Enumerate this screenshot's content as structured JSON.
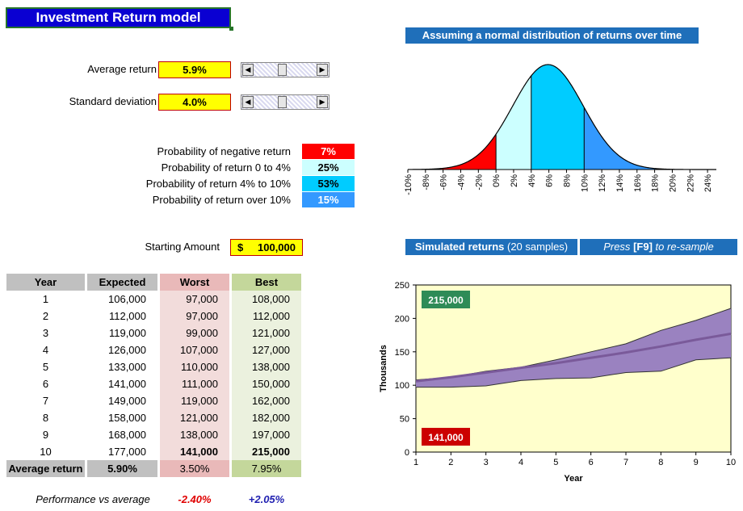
{
  "title": "Investment Return model",
  "inputs": {
    "avg_return_label": "Average return",
    "avg_return_value": "5.9%",
    "avg_return_slider": 0.45,
    "std_dev_label": "Standard deviation",
    "std_dev_value": "4.0%",
    "std_dev_slider": 0.45
  },
  "probabilities": [
    {
      "label": "Probability of negative return",
      "value": "7%",
      "color": "#ff0000",
      "text_color": "#ffffff"
    },
    {
      "label": "Probability of return 0 to 4%",
      "value": "25%",
      "color": "#ccffff",
      "text_color": "#000000"
    },
    {
      "label": "Probability of return 4% to 10%",
      "value": "53%",
      "color": "#00ccff",
      "text_color": "#000000"
    },
    {
      "label": "Probability of return over 10%",
      "value": "15%",
      "color": "#3399ff",
      "text_color": "#ffffff"
    }
  ],
  "starting_amount": {
    "label": "Starting Amount",
    "currency": "$",
    "value": "100,000"
  },
  "table": {
    "headers": [
      "Year",
      "Expected",
      "Worst",
      "Best"
    ],
    "rows": [
      [
        "1",
        "106,000",
        "97,000",
        "108,000"
      ],
      [
        "2",
        "112,000",
        "97,000",
        "112,000"
      ],
      [
        "3",
        "119,000",
        "99,000",
        "121,000"
      ],
      [
        "4",
        "126,000",
        "107,000",
        "127,000"
      ],
      [
        "5",
        "133,000",
        "110,000",
        "138,000"
      ],
      [
        "6",
        "141,000",
        "111,000",
        "150,000"
      ],
      [
        "7",
        "149,000",
        "119,000",
        "162,000"
      ],
      [
        "8",
        "158,000",
        "121,000",
        "182,000"
      ],
      [
        "9",
        "168,000",
        "138,000",
        "197,000"
      ],
      [
        "10",
        "177,000",
        "141,000",
        "215,000"
      ]
    ],
    "avg_label": "Average return",
    "avg_values": [
      "5.90%",
      "3.50%",
      "7.95%"
    ],
    "perf_label": "Performance vs average",
    "perf_worst": "-2.40%",
    "perf_best": "+2.05%"
  },
  "dist_banner": "Assuming a normal distribution of returns over time",
  "sim_banner_bold": "Simulated returns",
  "sim_banner_rest": "(20 samples)",
  "resample_pre": "Press",
  "resample_key": "[F9]",
  "resample_post": "to re-sample",
  "chart_data": [
    {
      "type": "area",
      "title": "Assuming a normal distribution of returns over time",
      "distribution": "normal",
      "mean": 5.9,
      "std_dev": 4.0,
      "x_ticks": [
        "-10%",
        "-8%",
        "-6%",
        "-4%",
        "-2%",
        "0%",
        "2%",
        "4%",
        "6%",
        "8%",
        "10%",
        "12%",
        "14%",
        "16%",
        "18%",
        "20%",
        "22%",
        "24%"
      ],
      "xlim": [
        -10,
        25
      ],
      "bands": [
        {
          "from": -10,
          "to": 0,
          "color": "#ff0000"
        },
        {
          "from": 0,
          "to": 4,
          "color": "#ccffff"
        },
        {
          "from": 4,
          "to": 10,
          "color": "#00ccff"
        },
        {
          "from": 10,
          "to": 25,
          "color": "#3399ff"
        }
      ]
    },
    {
      "type": "area",
      "title": "",
      "xlabel": "Year",
      "ylabel": "Thousands",
      "x": [
        1,
        2,
        3,
        4,
        5,
        6,
        7,
        8,
        9,
        10
      ],
      "ylim": [
        0,
        250
      ],
      "y_ticks": [
        0,
        50,
        100,
        150,
        200,
        250
      ],
      "series": [
        {
          "values": [
            97,
            97,
            99,
            107,
            110,
            111,
            119,
            121,
            138,
            141
          ],
          "color": "#333333"
        },
        {
          "values": [
            108,
            112,
            121,
            127,
            138,
            150,
            162,
            182,
            197,
            215
          ],
          "color": "#333333"
        },
        {
          "values": [
            106,
            112,
            119,
            126,
            133,
            141,
            149,
            158,
            168,
            177
          ],
          "color": "#7a5a9a"
        }
      ],
      "band_color": "#9a82c0",
      "plot_bg": "#ffffcc",
      "best_label": "215,000",
      "worst_label": "141,000",
      "best_color": "#2e8b57",
      "worst_color": "#cc0000"
    }
  ]
}
